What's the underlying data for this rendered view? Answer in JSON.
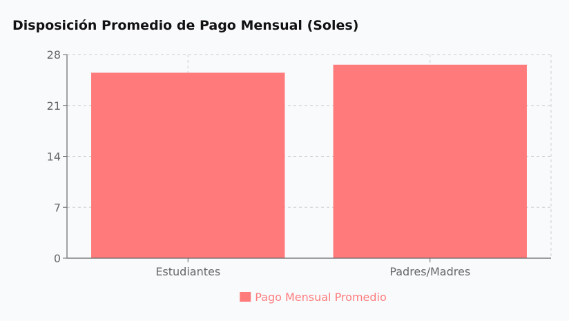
{
  "chart_data": {
    "type": "bar",
    "title": "Disposición Promedio de Pago Mensual (Soles)",
    "categories": [
      "Estudiantes",
      "Padres/Madres"
    ],
    "series": [
      {
        "name": "Pago Mensual Promedio",
        "values": [
          25.5,
          26.6
        ],
        "color": "#ff7b7b"
      }
    ],
    "yticks": [
      0,
      7,
      14,
      21,
      28
    ],
    "ylim": [
      0,
      28
    ],
    "xlabel": "",
    "ylabel": "",
    "grid": true,
    "legend_position": "bottom-center"
  }
}
